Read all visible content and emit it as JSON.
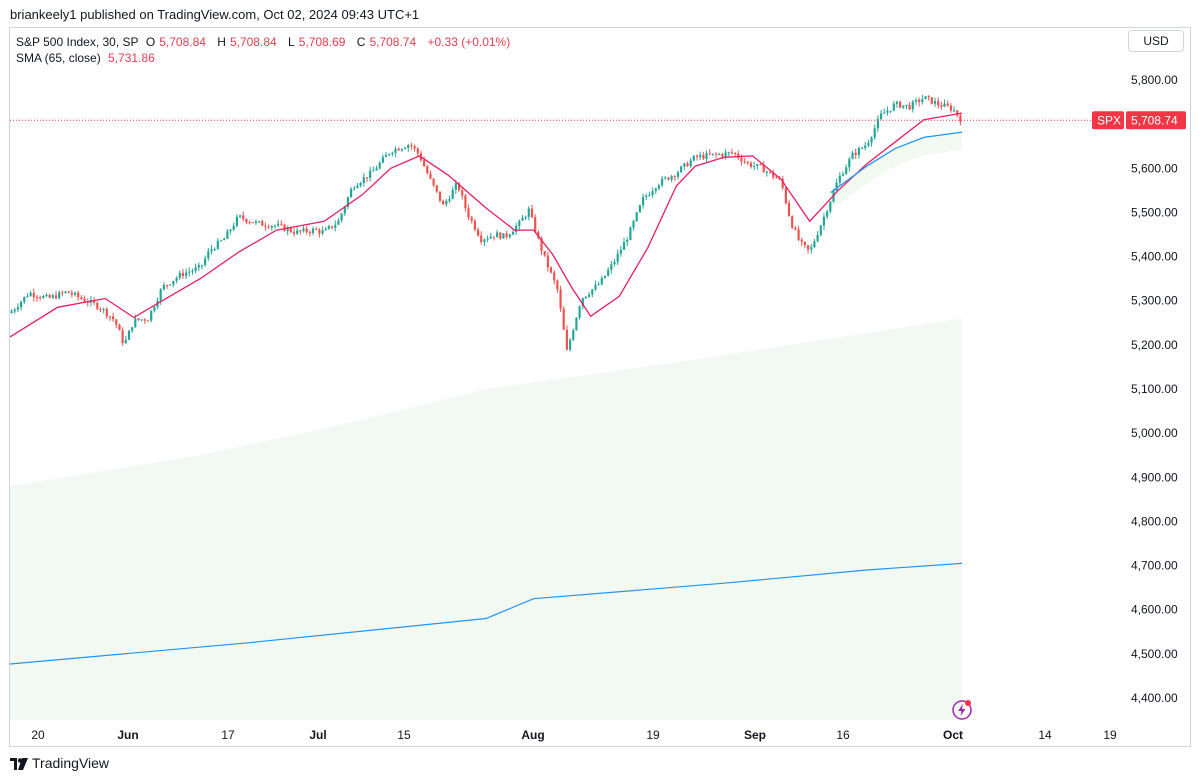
{
  "header": {
    "published": "briankeely1 published on TradingView.com, Oct 02, 2024 09:43 UTC+1"
  },
  "legend": {
    "symbol": "S&P 500 Index, 30, SP",
    "o_label": "O",
    "o_value": "5,708.84",
    "h_label": "H",
    "h_value": "5,708.84",
    "l_label": "L",
    "l_value": "5,708.69",
    "c_label": "C",
    "c_value": "5,708.74",
    "change": "+0.33 (+0.01%)",
    "sma_label": "SMA (65, close)",
    "sma_value": "5,731.86"
  },
  "currency_button": "USD",
  "footer": {
    "brand": "TradingView"
  },
  "colors": {
    "up": "#26a69a",
    "down": "#ef5350",
    "sma": "#e91e63",
    "blue": "#2196f3",
    "shade": "#4caf50",
    "price_label": "#f23645"
  },
  "chart_data": {
    "type": "candlestick",
    "symbol": "SPX",
    "last_price": 5708.74,
    "last_price_label": "5,708.74",
    "y_ticks": [
      5800,
      5700,
      5600,
      5500,
      5400,
      5300,
      5200,
      5100,
      5000,
      4900,
      4800,
      4700,
      4600,
      4500,
      4400
    ],
    "y_tick_labels": [
      "5,800.00",
      "5,700.00",
      "5,600.00",
      "5,500.00",
      "5,400.00",
      "5,300.00",
      "5,200.00",
      "5,100.00",
      "5,000.00",
      "4,900.00",
      "4,800.00",
      "4,700.00",
      "4,600.00",
      "4,500.00",
      "4,400.00"
    ],
    "x_tick_labels": [
      "20",
      "Jun",
      "17",
      "Jul",
      "15",
      "Aug",
      "19",
      "Sep",
      "16",
      "Oct",
      "14",
      "19"
    ],
    "ylim": [
      4355,
      5885
    ],
    "price_path": [
      [
        0,
        5272
      ],
      [
        0.02,
        5318
      ],
      [
        0.04,
        5305
      ],
      [
        0.06,
        5320
      ],
      [
        0.08,
        5300
      ],
      [
        0.095,
        5285
      ],
      [
        0.11,
        5255
      ],
      [
        0.12,
        5200
      ],
      [
        0.13,
        5255
      ],
      [
        0.145,
        5260
      ],
      [
        0.16,
        5330
      ],
      [
        0.18,
        5360
      ],
      [
        0.2,
        5375
      ],
      [
        0.21,
        5415
      ],
      [
        0.225,
        5440
      ],
      [
        0.24,
        5490
      ],
      [
        0.26,
        5475
      ],
      [
        0.28,
        5470
      ],
      [
        0.3,
        5455
      ],
      [
        0.32,
        5460
      ],
      [
        0.33,
        5455
      ],
      [
        0.345,
        5480
      ],
      [
        0.36,
        5560
      ],
      [
        0.38,
        5590
      ],
      [
        0.4,
        5640
      ],
      [
        0.42,
        5655
      ],
      [
        0.43,
        5630
      ],
      [
        0.44,
        5580
      ],
      [
        0.455,
        5515
      ],
      [
        0.47,
        5565
      ],
      [
        0.48,
        5500
      ],
      [
        0.495,
        5440
      ],
      [
        0.51,
        5450
      ],
      [
        0.52,
        5445
      ],
      [
        0.535,
        5475
      ],
      [
        0.545,
        5505
      ],
      [
        0.56,
        5405
      ],
      [
        0.575,
        5325
      ],
      [
        0.585,
        5185
      ],
      [
        0.6,
        5305
      ],
      [
        0.62,
        5340
      ],
      [
        0.635,
        5390
      ],
      [
        0.65,
        5450
      ],
      [
        0.665,
        5530
      ],
      [
        0.68,
        5565
      ],
      [
        0.7,
        5590
      ],
      [
        0.72,
        5625
      ],
      [
        0.74,
        5630
      ],
      [
        0.76,
        5635
      ],
      [
        0.775,
        5610
      ],
      [
        0.79,
        5600
      ],
      [
        0.81,
        5570
      ],
      [
        0.82,
        5480
      ],
      [
        0.83,
        5430
      ],
      [
        0.84,
        5410
      ],
      [
        0.855,
        5490
      ],
      [
        0.87,
        5575
      ],
      [
        0.885,
        5630
      ],
      [
        0.9,
        5655
      ],
      [
        0.915,
        5720
      ],
      [
        0.93,
        5745
      ],
      [
        0.945,
        5740
      ],
      [
        0.96,
        5760
      ],
      [
        0.975,
        5745
      ],
      [
        0.99,
        5735
      ],
      [
        1.0,
        5708
      ]
    ],
    "sma_path": [
      [
        0,
        5218
      ],
      [
        0.05,
        5285
      ],
      [
        0.1,
        5305
      ],
      [
        0.13,
        5262
      ],
      [
        0.16,
        5300
      ],
      [
        0.2,
        5350
      ],
      [
        0.24,
        5410
      ],
      [
        0.28,
        5460
      ],
      [
        0.33,
        5480
      ],
      [
        0.37,
        5540
      ],
      [
        0.4,
        5600
      ],
      [
        0.43,
        5628
      ],
      [
        0.46,
        5585
      ],
      [
        0.5,
        5510
      ],
      [
        0.53,
        5460
      ],
      [
        0.55,
        5460
      ],
      [
        0.57,
        5405
      ],
      [
        0.59,
        5330
      ],
      [
        0.61,
        5265
      ],
      [
        0.64,
        5310
      ],
      [
        0.67,
        5420
      ],
      [
        0.7,
        5560
      ],
      [
        0.72,
        5605
      ],
      [
        0.75,
        5625
      ],
      [
        0.78,
        5628
      ],
      [
        0.81,
        5575
      ],
      [
        0.84,
        5480
      ],
      [
        0.87,
        5550
      ],
      [
        0.9,
        5610
      ],
      [
        0.93,
        5660
      ],
      [
        0.96,
        5710
      ],
      [
        1.0,
        5725
      ]
    ],
    "blue_short": [
      [
        0.862,
        5545
      ],
      [
        0.9,
        5605
      ],
      [
        0.93,
        5645
      ],
      [
        0.96,
        5670
      ],
      [
        1.0,
        5682
      ]
    ],
    "shade_upper": [
      [
        0,
        4880
      ],
      [
        0.2,
        4950
      ],
      [
        0.35,
        5020
      ],
      [
        0.5,
        5100
      ],
      [
        0.7,
        5160
      ],
      [
        0.85,
        5210
      ],
      [
        1.0,
        5260
      ]
    ],
    "long_ma": [
      [
        0,
        4477
      ],
      [
        0.25,
        4525
      ],
      [
        0.5,
        4580
      ],
      [
        0.55,
        4625
      ],
      [
        0.75,
        4660
      ],
      [
        0.9,
        4690
      ],
      [
        1.0,
        4705
      ]
    ]
  }
}
